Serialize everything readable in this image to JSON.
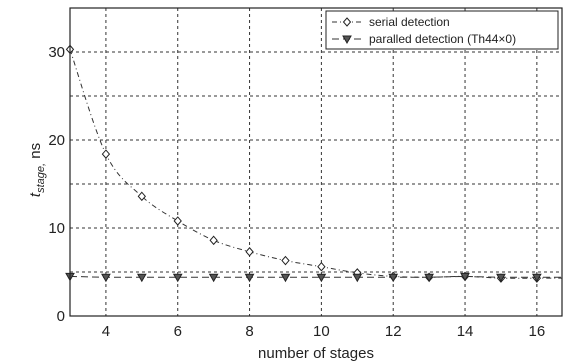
{
  "chart_data": {
    "type": "line",
    "x": [
      3,
      4,
      5,
      6,
      7,
      8,
      9,
      10,
      11,
      12,
      13,
      14,
      15,
      16
    ],
    "series": [
      {
        "name": "serial detection",
        "marker": "diamond",
        "values": [
          30.3,
          18.4,
          13.6,
          10.8,
          8.6,
          7.3,
          6.3,
          5.6,
          4.9,
          4.5,
          4.4,
          4.5,
          4.3,
          4.3
        ]
      },
      {
        "name": "paralled detection (Th44×0)",
        "marker": "triangle-down",
        "values": [
          4.5,
          4.4,
          4.4,
          4.4,
          4.4,
          4.4,
          4.4,
          4.4,
          4.4,
          4.4,
          4.4,
          4.5,
          4.4,
          4.4
        ]
      }
    ],
    "xlabel": "number of stages",
    "ylabel_main": "t",
    "ylabel_sub": "stage,",
    "ylabel_unit": " ns",
    "xlim": [
      3,
      16.7
    ],
    "ylim": [
      0,
      35
    ],
    "xticks": [
      4,
      6,
      8,
      10,
      12,
      14,
      16
    ],
    "yticks": [
      0,
      10,
      20,
      30
    ],
    "grid": true,
    "legend_position": "top-right"
  }
}
